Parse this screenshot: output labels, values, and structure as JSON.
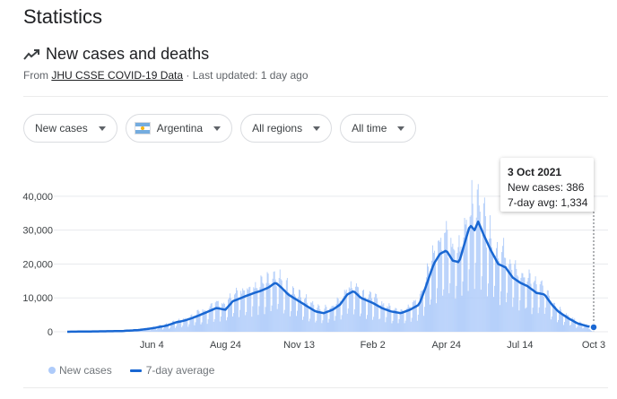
{
  "page": {
    "title": "Statistics"
  },
  "section": {
    "title": "New cases and deaths",
    "source_prefix": "From ",
    "source_link": "JHU CSSE COVID-19 Data",
    "source_suffix": " · Last updated: 1 day ago"
  },
  "filters": {
    "metric": "New cases",
    "country": "Argentina",
    "region": "All regions",
    "time": "All time"
  },
  "tooltip": {
    "date": "3 Oct 2021",
    "new_cases": "New cases: 386",
    "avg": "7-day avg: 1,334"
  },
  "legend": {
    "bars": "New cases",
    "line": "7-day average"
  },
  "colors": {
    "bars": "#aecbfa",
    "line": "#1967d2",
    "grid": "#e8eaed"
  },
  "chart_data": {
    "type": "bar",
    "title": "",
    "xlabel": "",
    "ylabel": "",
    "ylim": [
      0,
      45000
    ],
    "y_ticks": [
      0,
      10000,
      20000,
      30000,
      40000
    ],
    "y_tick_labels": [
      "0",
      "10,000",
      "20,000",
      "30,000",
      "40,000"
    ],
    "x_start": "2020-03-03",
    "x_end": "2021-10-03",
    "x_ticks": [
      {
        "date": "2020-06-04",
        "label": "Jun 4"
      },
      {
        "date": "2020-08-24",
        "label": "Aug 24"
      },
      {
        "date": "2020-11-13",
        "label": "Nov 13"
      },
      {
        "date": "2021-02-02",
        "label": "Feb 2"
      },
      {
        "date": "2021-04-24",
        "label": "Apr 24"
      },
      {
        "date": "2021-07-14",
        "label": "Jul 14"
      },
      {
        "date": "2021-10-03",
        "label": "Oct 3"
      }
    ],
    "series": [
      {
        "name": "7-day average",
        "points": [
          [
            "2020-03-03",
            0
          ],
          [
            "2020-04-01",
            100
          ],
          [
            "2020-05-01",
            200
          ],
          [
            "2020-05-20",
            500
          ],
          [
            "2020-06-04",
            1000
          ],
          [
            "2020-06-20",
            1800
          ],
          [
            "2020-07-01",
            2800
          ],
          [
            "2020-07-10",
            3300
          ],
          [
            "2020-07-20",
            4200
          ],
          [
            "2020-08-01",
            5500
          ],
          [
            "2020-08-14",
            7000
          ],
          [
            "2020-08-24",
            6500
          ],
          [
            "2020-09-01",
            9000
          ],
          [
            "2020-09-15",
            10500
          ],
          [
            "2020-09-25",
            11500
          ],
          [
            "2020-10-01",
            12000
          ],
          [
            "2020-10-10",
            13000
          ],
          [
            "2020-10-18",
            14500
          ],
          [
            "2020-10-24",
            13200
          ],
          [
            "2020-11-01",
            11000
          ],
          [
            "2020-11-13",
            9000
          ],
          [
            "2020-11-22",
            7500
          ],
          [
            "2020-12-01",
            6000
          ],
          [
            "2020-12-10",
            5500
          ],
          [
            "2020-12-20",
            6500
          ],
          [
            "2020-12-28",
            8000
          ],
          [
            "2021-01-05",
            11000
          ],
          [
            "2021-01-12",
            12000
          ],
          [
            "2021-01-20",
            10000
          ],
          [
            "2021-02-02",
            8500
          ],
          [
            "2021-02-12",
            7000
          ],
          [
            "2021-02-22",
            6000
          ],
          [
            "2021-03-05",
            5500
          ],
          [
            "2021-03-15",
            6500
          ],
          [
            "2021-03-25",
            8000
          ],
          [
            "2021-04-01",
            13000
          ],
          [
            "2021-04-10",
            20000
          ],
          [
            "2021-04-17",
            23000
          ],
          [
            "2021-04-24",
            24000
          ],
          [
            "2021-05-01",
            21000
          ],
          [
            "2021-05-08",
            20500
          ],
          [
            "2021-05-15",
            27000
          ],
          [
            "2021-05-20",
            31500
          ],
          [
            "2021-05-25",
            30000
          ],
          [
            "2021-05-29",
            32500
          ],
          [
            "2021-06-05",
            28000
          ],
          [
            "2021-06-12",
            24000
          ],
          [
            "2021-06-20",
            20000
          ],
          [
            "2021-06-28",
            19000
          ],
          [
            "2021-07-06",
            16000
          ],
          [
            "2021-07-14",
            14500
          ],
          [
            "2021-07-22",
            13500
          ],
          [
            "2021-08-01",
            11500
          ],
          [
            "2021-08-10",
            11000
          ],
          [
            "2021-08-18",
            8000
          ],
          [
            "2021-08-25",
            6000
          ],
          [
            "2021-09-05",
            4000
          ],
          [
            "2021-09-15",
            2500
          ],
          [
            "2021-09-25",
            1700
          ],
          [
            "2021-10-03",
            1334
          ]
        ]
      }
    ],
    "bars_note": "daily new cases, bars",
    "tooltip_point": {
      "date": "2021-10-03",
      "new_cases": 386,
      "avg": 1334
    }
  }
}
